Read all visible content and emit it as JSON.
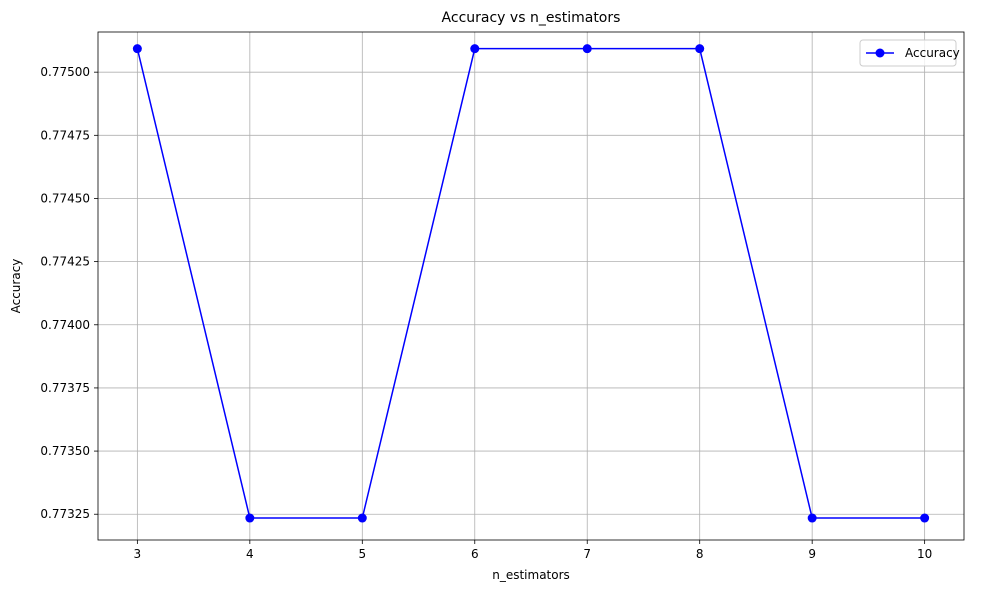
{
  "chart_data": {
    "type": "line",
    "title": "Accuracy vs n_estimators",
    "xlabel": "n_estimators",
    "ylabel": "Accuracy",
    "x": [
      3,
      4,
      5,
      6,
      7,
      8,
      9,
      10
    ],
    "xticks": [
      "3",
      "4",
      "5",
      "6",
      "7",
      "8",
      "9",
      "10"
    ],
    "yticks": [
      "0.77325",
      "0.77350",
      "0.77375",
      "0.77400",
      "0.77425",
      "0.77450",
      "0.77475",
      "0.77500"
    ],
    "ytick_values": [
      0.77325,
      0.7735,
      0.77375,
      0.774,
      0.77425,
      0.7745,
      0.77475,
      0.775
    ],
    "xlim": [
      2.65,
      10.35
    ],
    "ylim": [
      0.773148,
      0.775159
    ],
    "grid": true,
    "legend_position": "top-right",
    "series": [
      {
        "name": "Accuracy",
        "color": "#0000ff",
        "marker": "circle",
        "values": [
          0.775093,
          0.773235,
          0.773235,
          0.775093,
          0.775093,
          0.775093,
          0.773235,
          0.773235
        ]
      }
    ]
  }
}
